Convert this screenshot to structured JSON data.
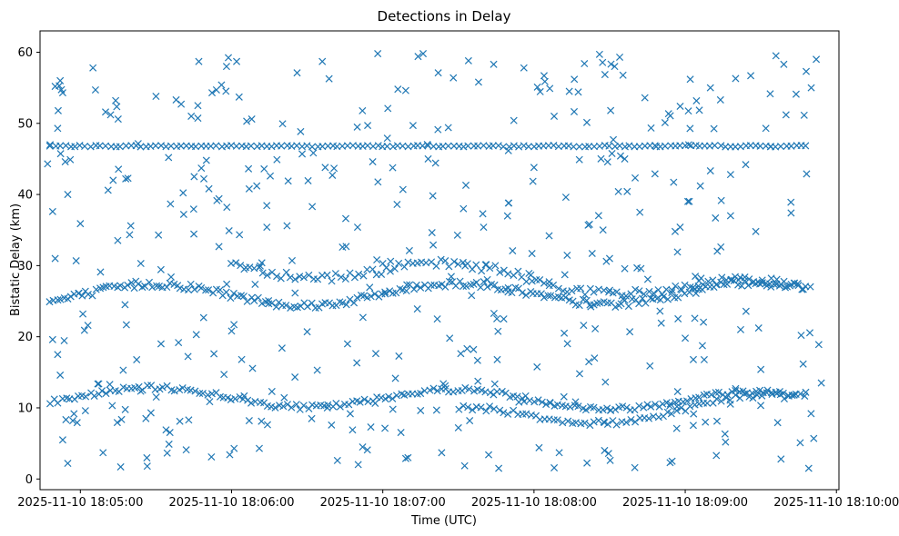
{
  "chart_data": {
    "type": "scatter",
    "title": "Detections in Delay",
    "xlabel": "Time (UTC)",
    "ylabel": "Bistatic Delay (km)",
    "xlim_seconds_after_18_05": [
      -16,
      301
    ],
    "ylim": [
      -1.5,
      63
    ],
    "grid": false,
    "marker": "x",
    "color": "#1f77b4",
    "x_tick_seconds": [
      0,
      60,
      120,
      180,
      240,
      300
    ],
    "x_tick_labels": [
      "2025-11-10 18:05:00",
      "2025-11-10 18:06:00",
      "2025-11-10 18:07:00",
      "2025-11-10 18:08:00",
      "2025-11-10 18:09:00",
      "2025-11-10 18:10:00"
    ],
    "y_ticks": [
      0,
      10,
      20,
      30,
      40,
      50,
      60
    ],
    "y_tick_labels": [
      "0",
      "10",
      "20",
      "30",
      "40",
      "50",
      "60"
    ],
    "bands": [
      {
        "name": "track-47",
        "t_start": -12,
        "t_end": 288,
        "step": 2.0,
        "y_start": 46.8,
        "y_end": 46.8,
        "jitter": 0.1
      },
      {
        "name": "track-12",
        "t_start": -12,
        "t_end": 288,
        "step": 1.6,
        "y_start": 11.6,
        "y_end": 11.0,
        "wave": 1.3,
        "jitter": 0.35
      },
      {
        "name": "track-26",
        "t_start": -12,
        "t_end": 288,
        "step": 1.4,
        "y_start": 25.8,
        "y_end": 26.2,
        "wave": 1.5,
        "jitter": 0.5
      },
      {
        "name": "track-27b",
        "t_start": 60,
        "t_end": 288,
        "step": 1.8,
        "y_start": 30.5,
        "y_end": 26.0,
        "wave": 1.5,
        "jitter": 0.6
      },
      {
        "name": "track-13b",
        "t_start": 150,
        "t_end": 285,
        "step": 1.8,
        "y_start": 8.5,
        "y_end": 10.5,
        "wave": 1.5,
        "jitter": 0.4
      }
    ],
    "scatter_points": [
      [
        -13,
        44.3
      ],
      [
        -12,
        47.0
      ],
      [
        -11,
        37.6
      ],
      [
        -11,
        19.6
      ],
      [
        -10,
        55.2
      ],
      [
        -10,
        31.0
      ],
      [
        -9,
        49.3
      ],
      [
        -9,
        17.5
      ],
      [
        -8,
        56.0
      ],
      [
        -8,
        14.6
      ],
      [
        -7,
        54.3
      ],
      [
        -7,
        5.5
      ],
      [
        -6,
        44.6
      ],
      [
        -5,
        40.0
      ],
      [
        -5,
        2.2
      ],
      [
        -4,
        44.9
      ],
      [
        -3,
        8.2
      ],
      [
        0,
        35.9
      ],
      [
        1,
        23.2
      ],
      [
        2,
        9.6
      ],
      [
        3,
        21.6
      ],
      [
        5,
        57.8
      ],
      [
        6,
        54.7
      ],
      [
        8,
        29.1
      ],
      [
        9,
        3.7
      ],
      [
        10,
        51.6
      ],
      [
        11,
        40.6
      ],
      [
        12,
        51.2
      ],
      [
        13,
        42.0
      ],
      [
        14,
        53.2
      ],
      [
        15,
        50.6
      ],
      [
        16,
        1.7
      ],
      [
        17,
        15.3
      ],
      [
        18,
        42.2
      ],
      [
        20,
        35.6
      ],
      [
        22,
        27.8
      ],
      [
        24,
        30.3
      ],
      [
        26,
        8.5
      ],
      [
        28,
        9.3
      ],
      [
        30,
        53.8
      ],
      [
        31,
        34.3
      ],
      [
        32,
        19.0
      ],
      [
        34,
        6.9
      ],
      [
        35,
        45.2
      ],
      [
        36,
        28.4
      ],
      [
        38,
        53.3
      ],
      [
        40,
        52.7
      ],
      [
        41,
        37.2
      ],
      [
        42,
        4.1
      ],
      [
        43,
        8.3
      ],
      [
        44,
        51.0
      ],
      [
        46,
        20.3
      ],
      [
        47,
        58.7
      ],
      [
        48,
        43.7
      ],
      [
        49,
        42.2
      ],
      [
        50,
        44.8
      ],
      [
        51,
        40.8
      ],
      [
        52,
        3.1
      ],
      [
        53,
        17.6
      ],
      [
        54,
        54.7
      ],
      [
        55,
        39.4
      ],
      [
        56,
        55.4
      ],
      [
        57,
        14.7
      ],
      [
        58,
        58.0
      ],
      [
        59,
        34.9
      ],
      [
        60,
        20.8
      ],
      [
        61,
        4.3
      ],
      [
        62,
        58.7
      ],
      [
        63,
        53.7
      ],
      [
        64,
        16.8
      ],
      [
        65,
        29.5
      ],
      [
        66,
        50.3
      ],
      [
        67,
        8.2
      ],
      [
        68,
        50.6
      ],
      [
        70,
        41.2
      ],
      [
        71,
        4.3
      ],
      [
        72,
        30.4
      ],
      [
        74,
        35.4
      ],
      [
        76,
        12.3
      ],
      [
        78,
        44.9
      ],
      [
        80,
        18.4
      ],
      [
        82,
        35.6
      ],
      [
        84,
        30.7
      ],
      [
        86,
        57.1
      ],
      [
        88,
        45.7
      ],
      [
        90,
        20.7
      ],
      [
        92,
        38.3
      ],
      [
        94,
        15.3
      ],
      [
        96,
        58.7
      ],
      [
        98,
        10.0
      ],
      [
        100,
        42.7
      ],
      [
        102,
        2.6
      ],
      [
        104,
        32.6
      ],
      [
        106,
        19.0
      ],
      [
        108,
        6.9
      ],
      [
        110,
        35.4
      ],
      [
        112,
        4.5
      ],
      [
        114,
        49.7
      ],
      [
        116,
        44.6
      ],
      [
        118,
        59.8
      ],
      [
        120,
        30.3
      ],
      [
        122,
        52.1
      ],
      [
        124,
        9.8
      ],
      [
        126,
        54.8
      ],
      [
        128,
        40.7
      ],
      [
        130,
        3.0
      ],
      [
        132,
        49.7
      ],
      [
        134,
        59.4
      ],
      [
        136,
        59.8
      ],
      [
        138,
        45.0
      ],
      [
        140,
        32.9
      ],
      [
        142,
        57.1
      ],
      [
        144,
        13.4
      ],
      [
        146,
        49.4
      ],
      [
        148,
        56.4
      ],
      [
        150,
        7.2
      ],
      [
        152,
        38.0
      ],
      [
        154,
        58.8
      ],
      [
        156,
        18.2
      ],
      [
        158,
        55.8
      ],
      [
        160,
        35.4
      ],
      [
        162,
        3.4
      ],
      [
        164,
        58.3
      ],
      [
        166,
        1.5
      ],
      [
        168,
        22.5
      ],
      [
        170,
        38.8
      ],
      [
        172,
        50.4
      ],
      [
        174,
        10.8
      ],
      [
        176,
        57.8
      ],
      [
        178,
        28.9
      ],
      [
        180,
        43.8
      ],
      [
        182,
        4.4
      ],
      [
        184,
        56.7
      ],
      [
        186,
        34.2
      ],
      [
        188,
        51.0
      ],
      [
        190,
        3.7
      ],
      [
        192,
        20.5
      ],
      [
        194,
        54.5
      ],
      [
        196,
        56.2
      ],
      [
        198,
        44.9
      ],
      [
        200,
        58.4
      ],
      [
        202,
        35.8
      ],
      [
        204,
        17.0
      ],
      [
        206,
        59.7
      ],
      [
        208,
        4.0
      ],
      [
        210,
        31.0
      ],
      [
        212,
        58.0
      ],
      [
        214,
        59.3
      ],
      [
        216,
        45.0
      ],
      [
        218,
        20.7
      ],
      [
        220,
        1.6
      ],
      [
        222,
        37.5
      ],
      [
        224,
        53.6
      ],
      [
        226,
        15.9
      ],
      [
        228,
        42.9
      ],
      [
        230,
        23.6
      ],
      [
        232,
        50.1
      ],
      [
        234,
        2.3
      ],
      [
        236,
        34.8
      ],
      [
        238,
        52.4
      ],
      [
        240,
        19.8
      ],
      [
        242,
        56.2
      ],
      [
        244,
        28.5
      ],
      [
        246,
        41.2
      ],
      [
        248,
        8.0
      ],
      [
        250,
        55.0
      ],
      [
        252,
        36.7
      ],
      [
        254,
        53.3
      ],
      [
        256,
        5.2
      ],
      [
        258,
        42.8
      ],
      [
        260,
        56.3
      ],
      [
        262,
        21.0
      ],
      [
        264,
        44.2
      ],
      [
        266,
        56.7
      ],
      [
        268,
        34.8
      ],
      [
        270,
        15.4
      ],
      [
        272,
        49.3
      ],
      [
        274,
        27.0
      ],
      [
        276,
        59.5
      ],
      [
        278,
        2.8
      ],
      [
        280,
        51.2
      ],
      [
        282,
        37.4
      ],
      [
        284,
        54.1
      ],
      [
        286,
        20.2
      ],
      [
        288,
        57.3
      ],
      [
        289,
        1.5
      ],
      [
        290,
        55.0
      ],
      [
        291,
        5.7
      ],
      [
        292,
        59.0
      ],
      [
        293,
        18.9
      ],
      [
        294,
        13.5
      ]
    ],
    "random_fill": {
      "count": 260,
      "t_start": -12,
      "t_end": 290,
      "y_min": 1.5,
      "y_max": 60.0,
      "seed": 7
    }
  }
}
